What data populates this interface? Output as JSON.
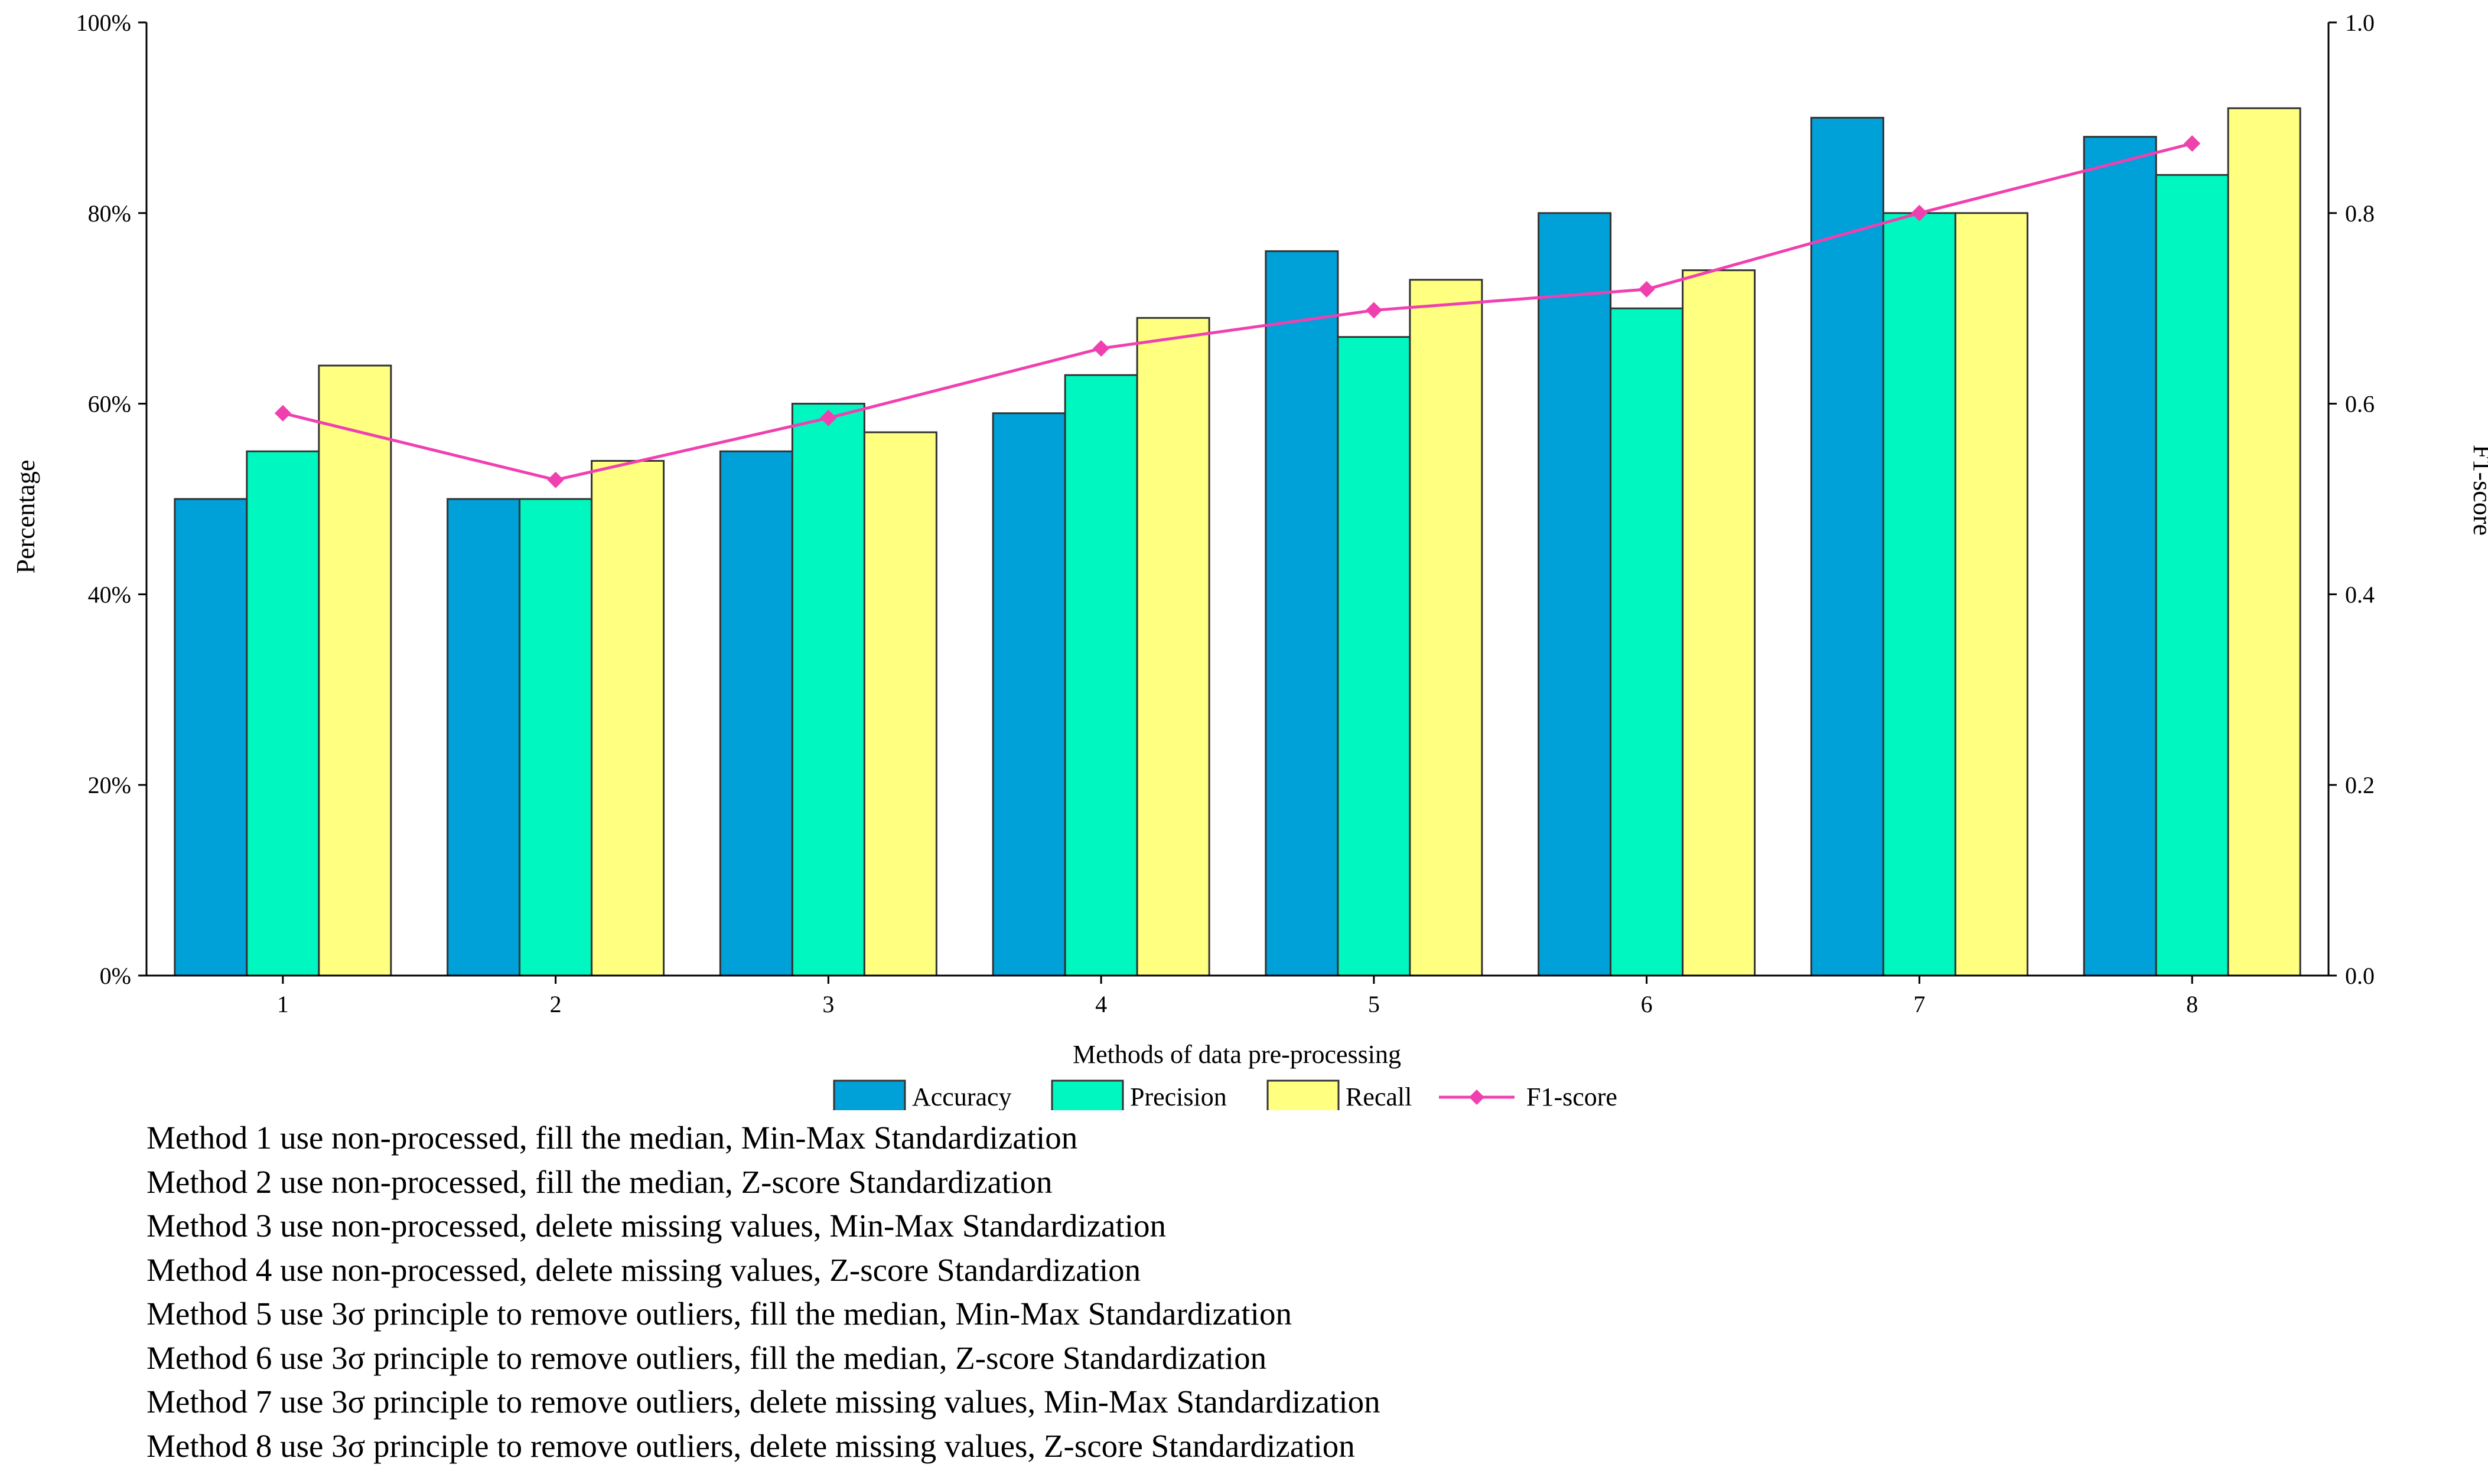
{
  "chart_data": {
    "type": "bar",
    "categories": [
      "1",
      "2",
      "3",
      "4",
      "5",
      "6",
      "7",
      "8"
    ],
    "series": [
      {
        "name": "Accuracy",
        "axis": "left",
        "color": "#00A0D8",
        "values": [
          50,
          50,
          55,
          59,
          76,
          80,
          90,
          88
        ]
      },
      {
        "name": "Precision",
        "axis": "left",
        "color": "#00F8C0",
        "values": [
          55,
          50,
          60,
          63,
          67,
          70,
          80,
          84
        ]
      },
      {
        "name": "Recall",
        "axis": "left",
        "color": "#FFFF80",
        "values": [
          64,
          54,
          57,
          69,
          73,
          74,
          80,
          91
        ]
      },
      {
        "name": "F1-score",
        "axis": "right",
        "type": "line",
        "color": "#F040B0",
        "values": [
          0.59,
          0.52,
          0.585,
          0.658,
          0.698,
          0.72,
          0.8,
          0.873
        ]
      }
    ],
    "xlabel": "Methods of data pre-processing",
    "ylabel": "Percentage",
    "y2label": "F1-score",
    "ylim": [
      0,
      100
    ],
    "y2lim": [
      0,
      1
    ],
    "yticks": [
      "0%",
      "20%",
      "40%",
      "60%",
      "80%",
      "100%"
    ],
    "y2ticks": [
      "0.0",
      "0.2",
      "0.4",
      "0.6",
      "0.8",
      "1.0"
    ],
    "legend": [
      "Accuracy",
      "Precision",
      "Recall",
      "F1-score"
    ],
    "legend_position": "bottom-center",
    "grid": false
  },
  "notes": [
    "Method 1 use non-processed, fill the median, Min-Max Standardization",
    "Method 2 use non-processed, fill the median, Z-score Standardization",
    "Method 3 use non-processed, delete missing values, Min-Max Standardization",
    "Method 4 use non-processed, delete missing values, Z-score Standardization",
    "Method 5 use 3σ principle to remove outliers, fill the median, Min-Max Standardization",
    "Method 6 use 3σ principle to remove outliers, fill the median, Z-score Standardization",
    "Method 7 use 3σ principle to remove outliers, delete missing values, Min-Max Standardization",
    "Method 8 use 3σ principle to remove outliers, delete missing values, Z-score Standardization"
  ]
}
